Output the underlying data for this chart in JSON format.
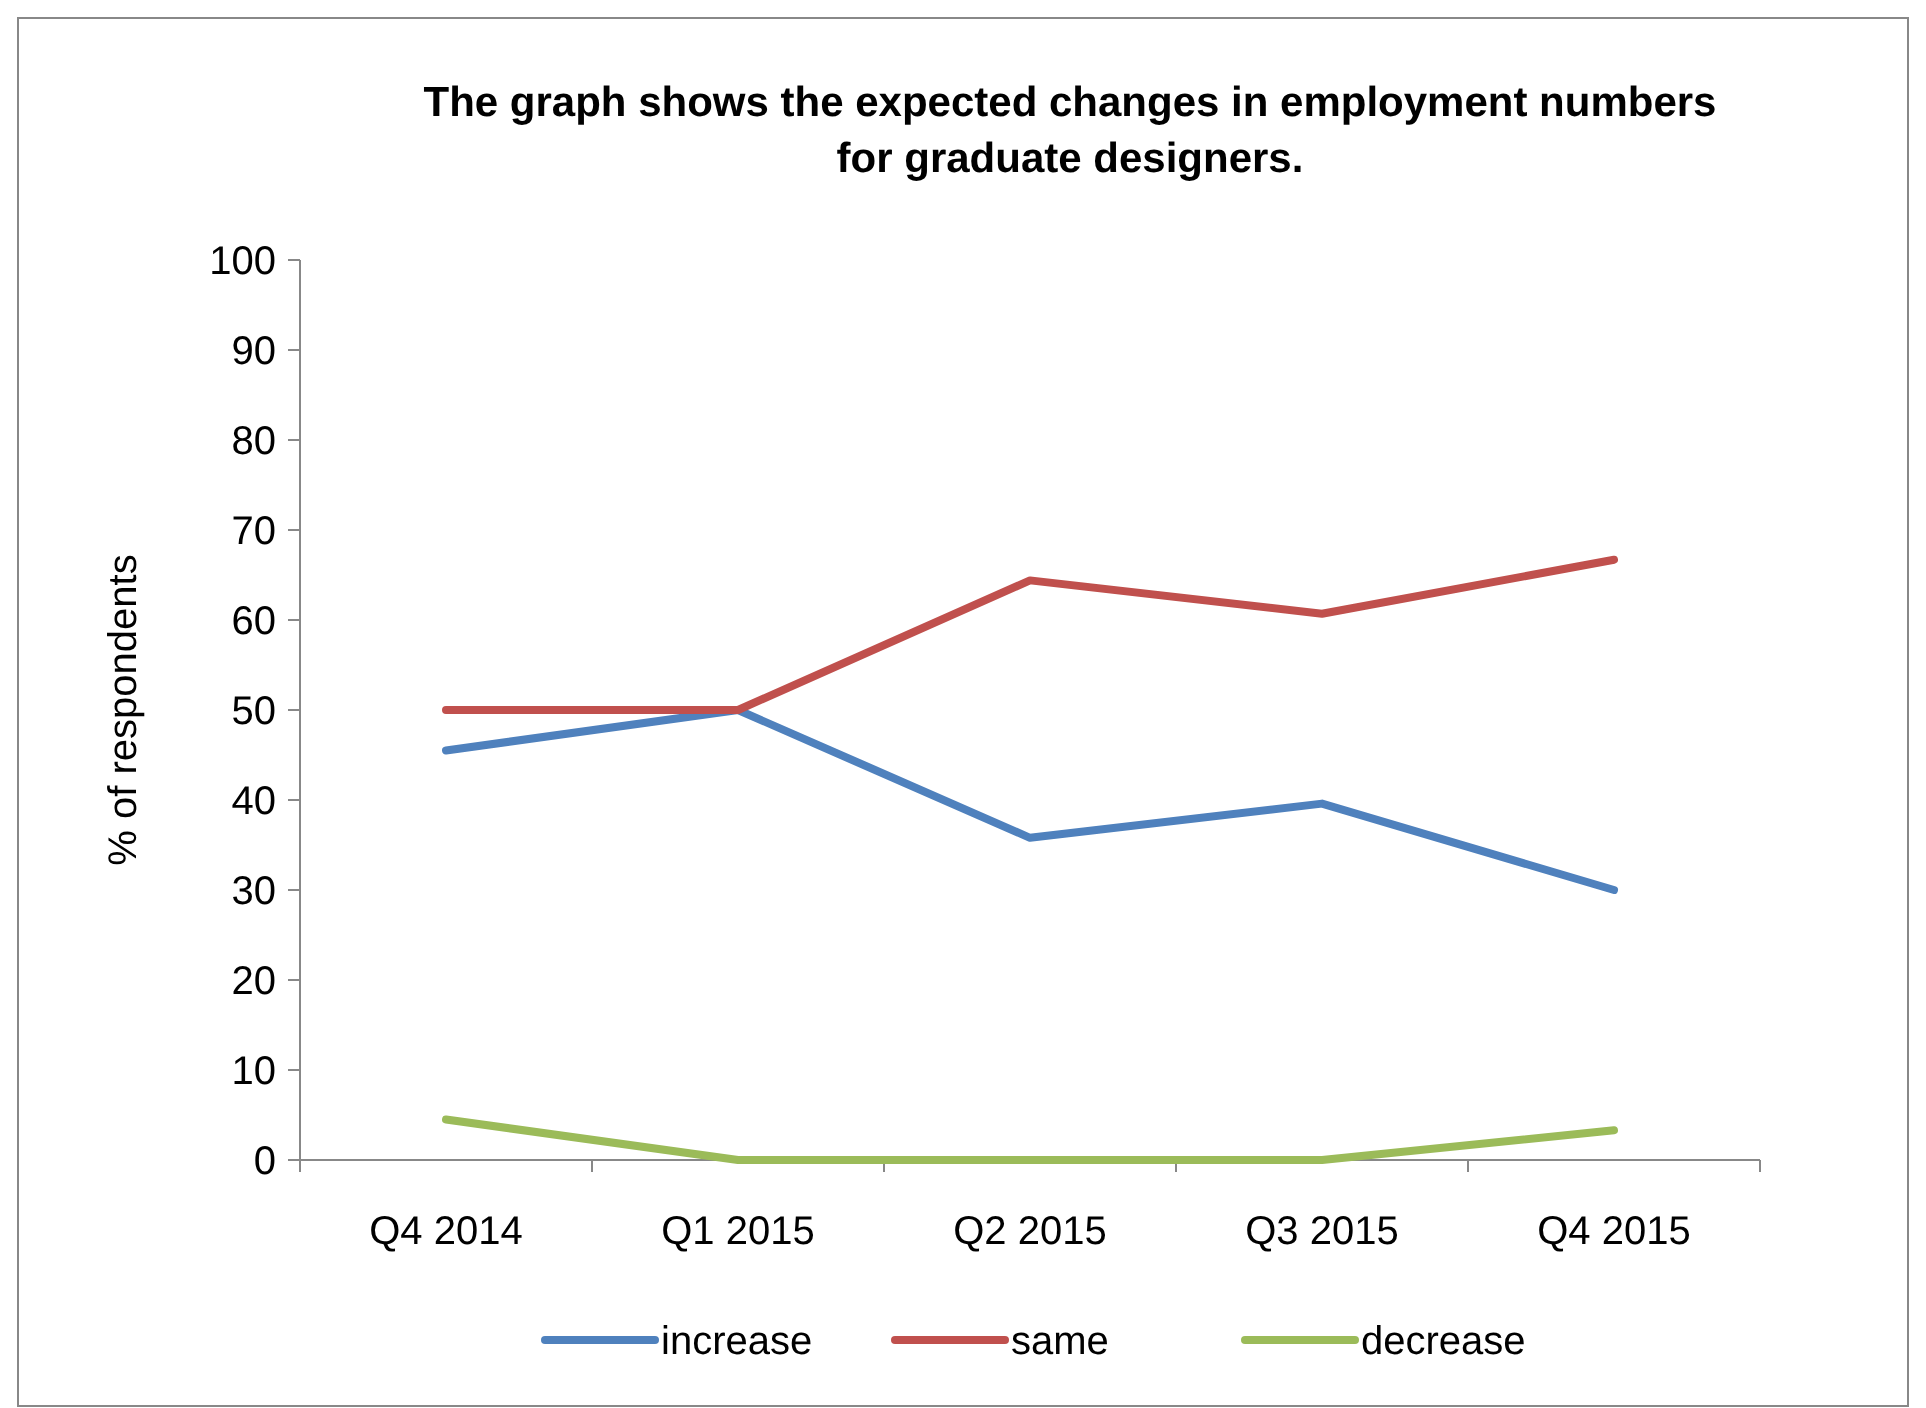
{
  "chart_data": {
    "type": "line",
    "title": "The graph shows the expected changes in employment numbers\nfor graduate designers.",
    "ylabel": "% of respondents",
    "categories": [
      "Q4 2014",
      "Q1 2015",
      "Q2 2015",
      "Q3 2015",
      "Q4 2015"
    ],
    "ylim": [
      0,
      100
    ],
    "yticks": [
      0,
      10,
      20,
      30,
      40,
      50,
      60,
      70,
      80,
      90,
      100
    ],
    "grid": false,
    "legend": "bottom",
    "marker": "none",
    "line_style": "solid",
    "series": [
      {
        "name": "increase",
        "color": "#4f81bd",
        "values": [
          45.5,
          50,
          35.8,
          39.6,
          30
        ]
      },
      {
        "name": "same",
        "color": "#c0504d",
        "values": [
          50,
          50,
          64.4,
          60.7,
          66.7
        ]
      },
      {
        "name": "decrease",
        "color": "#9bbb59",
        "values": [
          4.5,
          0,
          0,
          0,
          3.3
        ]
      }
    ]
  }
}
